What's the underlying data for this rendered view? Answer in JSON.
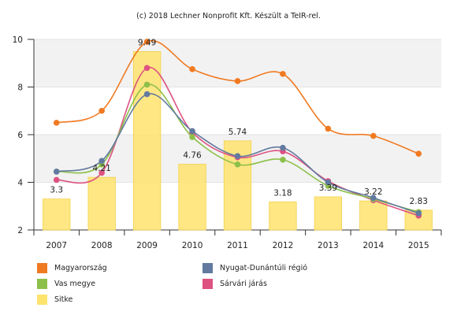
{
  "chart_data": {
    "type": "bar",
    "title": "(c) 2018 Lechner Nonprofit Kft. Készült a TeIR-rel.",
    "categories": [
      "2007",
      "2008",
      "2009",
      "2010",
      "2011",
      "2012",
      "2013",
      "2014",
      "2015"
    ],
    "ylim": [
      2,
      10
    ],
    "yticks": [
      2,
      4,
      6,
      8,
      10
    ],
    "grid": true,
    "legend_position": "bottom",
    "series": [
      {
        "name": "Magyarország",
        "type": "line",
        "color": "#f07a21",
        "values": [
          6.5,
          7.0,
          9.9,
          8.75,
          8.25,
          8.55,
          6.25,
          5.95,
          5.2
        ]
      },
      {
        "name": "Nyugat-Dunántúli régió",
        "type": "line",
        "color": "#627aa0",
        "values": [
          4.45,
          4.9,
          7.7,
          6.15,
          5.1,
          5.45,
          4.0,
          3.35,
          2.7
        ]
      },
      {
        "name": "Vas megye",
        "type": "line",
        "color": "#8dc04a",
        "values": [
          4.45,
          4.75,
          8.1,
          5.9,
          4.75,
          4.95,
          3.85,
          3.3,
          2.75
        ]
      },
      {
        "name": "Sárvári járás",
        "type": "line",
        "color": "#de5281",
        "values": [
          4.1,
          4.4,
          8.8,
          6.1,
          5.05,
          5.3,
          4.05,
          3.25,
          2.6
        ]
      },
      {
        "name": "Sitke",
        "type": "bar",
        "color": "#ffe36f",
        "values": [
          3.3,
          4.21,
          9.49,
          4.76,
          5.74,
          3.18,
          3.39,
          3.22,
          2.83
        ],
        "labels": [
          "3.3",
          "4.21",
          "9.49",
          "4.76",
          "5.74",
          "3.18",
          "3.39",
          "3.22",
          "2.83"
        ]
      }
    ]
  }
}
